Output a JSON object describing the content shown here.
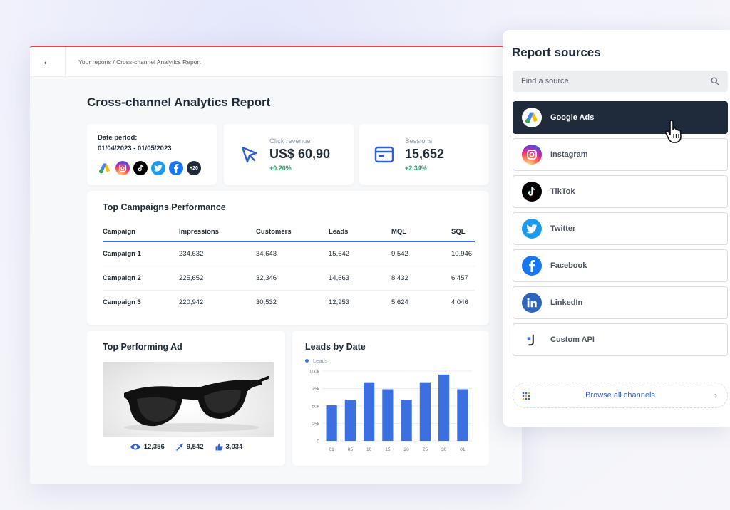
{
  "report": {
    "back_label": "←",
    "breadcrumb": "Your reports / Cross-channel Analytics Report",
    "title": "Cross-channel Analytics Report",
    "period": {
      "label": "Date period:",
      "value": "01/04/2023 - 01/05/2023",
      "more_channels": "+20"
    },
    "click_revenue": {
      "label": "Click revenue",
      "value": "US$ 60,90",
      "delta": "+0.20%"
    },
    "sessions": {
      "label": "Sessions",
      "value": "15,652",
      "delta": "+2.34%"
    },
    "campaigns": {
      "title": "Top Campaigns Performance",
      "columns": [
        "Campaign",
        "Impressions",
        "Customers",
        "Leads",
        "MQL",
        "SQL"
      ],
      "rows": [
        [
          "Campaign 1",
          "234,632",
          "34,643",
          "15,642",
          "9,542",
          "10,946"
        ],
        [
          "Campaign 2",
          "225,652",
          "32,346",
          "14,663",
          "8,432",
          "6,457"
        ],
        [
          "Campaign 3",
          "220,942",
          "30,532",
          "12,953",
          "5,624",
          "4,046"
        ]
      ]
    },
    "top_ad": {
      "title": "Top Performing Ad",
      "views": "12,356",
      "clicks": "9,542",
      "likes": "3,034"
    },
    "leads_chart_title": "Leads by Date"
  },
  "chart_data": {
    "type": "bar",
    "title": "Leads by Date",
    "legend": [
      "Leads"
    ],
    "legend_position": "top-left",
    "x_ticks": [
      "01",
      "05",
      "10",
      "15",
      "20",
      "25",
      "30",
      "01"
    ],
    "y_ticks": [
      "100k",
      "75k",
      "50k",
      "25k",
      "0"
    ],
    "ylim": [
      0,
      100000
    ],
    "grid": true,
    "series": [
      {
        "name": "Leads",
        "color": "#3c6fe0",
        "values": [
          51000,
          59000,
          84000,
          74000,
          59000,
          84000,
          95000,
          74000
        ]
      }
    ]
  },
  "sources": {
    "title": "Report sources",
    "search_placeholder": "Find a source",
    "items": [
      {
        "label": "Google Ads",
        "icon": "google-ads-icon",
        "active": true
      },
      {
        "label": "Instagram",
        "icon": "instagram-icon",
        "active": false
      },
      {
        "label": "TikTok",
        "icon": "tiktok-icon",
        "active": false
      },
      {
        "label": "Twitter",
        "icon": "twitter-icon",
        "active": false
      },
      {
        "label": "Facebook",
        "icon": "facebook-icon",
        "active": false
      },
      {
        "label": "LinkedIn",
        "icon": "linkedin-icon",
        "active": false
      },
      {
        "label": "Custom API",
        "icon": "custom-api-icon",
        "active": false
      }
    ],
    "browse_label": "Browse all channels",
    "browse_chevron": "›"
  },
  "colors": {
    "accent_blue": "#3c6fe0",
    "positive_green": "#21a366",
    "active_source_bg": "#1f2a3b",
    "top_border_red": "#e5484d"
  }
}
